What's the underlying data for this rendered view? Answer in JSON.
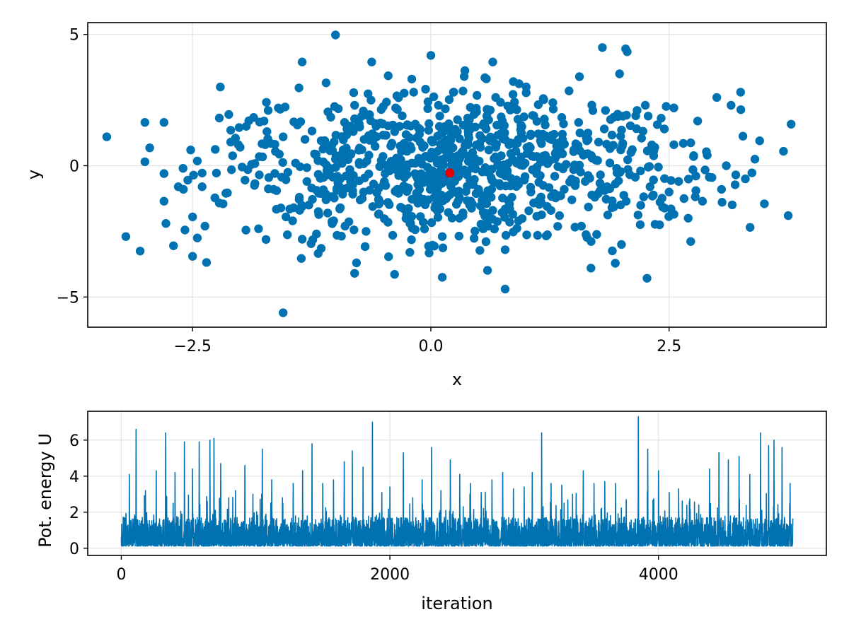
{
  "colors": {
    "series": "#0072b2",
    "highlight": "#e30000",
    "grid": "#e2e2e2",
    "axis": "#000000"
  },
  "chart_data": [
    {
      "type": "scatter",
      "title": "",
      "xlabel": "x",
      "ylabel": "y",
      "xlim": [
        -3.6,
        4.15
      ],
      "ylim": [
        -6.15,
        5.45
      ],
      "xticks": [
        -2.5,
        0.0,
        2.5
      ],
      "xtick_labels": [
        "−2.5",
        "0.0",
        "2.5"
      ],
      "yticks": [
        -5,
        0,
        5
      ],
      "ytick_labels": [
        "−5",
        "0",
        "5"
      ],
      "grid": true,
      "legend": "none",
      "highlight_point": {
        "x": 0.2,
        "y": -0.28
      },
      "series": [
        {
          "values": "approximately 1000 scattered points; cloud centered near (0.4, 0), x spanning about -3.4 to 3.8 and y spanning about -5.6 to 5.0"
        }
      ],
      "points": [
        [
          -3.4,
          1.1
        ],
        [
          -3.2,
          -2.7
        ],
        [
          -3.05,
          -3.25
        ],
        [
          -3.0,
          1.65
        ],
        [
          -3.0,
          0.15
        ],
        [
          -2.95,
          0.68
        ],
        [
          -2.8,
          1.65
        ],
        [
          -2.8,
          -0.3
        ],
        [
          -2.8,
          -1.35
        ],
        [
          -2.78,
          -2.2
        ],
        [
          -2.7,
          -3.05
        ],
        [
          -2.65,
          -0.8
        ],
        [
          -2.6,
          -0.1
        ],
        [
          -2.58,
          -2.45
        ],
        [
          -2.55,
          -0.55
        ],
        [
          -2.52,
          0.6
        ],
        [
          -2.5,
          -1.95
        ],
        [
          -2.5,
          -3.45
        ],
        [
          -2.45,
          -2.75
        ],
        [
          -2.45,
          0.18
        ],
        [
          -2.4,
          -0.28
        ],
        [
          -2.4,
          -0.8
        ],
        [
          -2.37,
          -2.3
        ],
        [
          -2.25,
          -0.28
        ],
        [
          -2.22,
          -1.42
        ],
        [
          -2.18,
          -1.45
        ],
        [
          -2.15,
          -1.05
        ],
        [
          -2.12,
          1.95
        ],
        [
          -2.1,
          1.35
        ],
        [
          -2.1,
          0.9
        ],
        [
          -2.08,
          0.38
        ],
        [
          -2.05,
          1.05
        ],
        [
          -2.02,
          0.8
        ],
        [
          -1.98,
          -0.05
        ],
        [
          -1.95,
          -0.55
        ],
        [
          -1.92,
          -0.15
        ],
        [
          -1.88,
          0.05
        ],
        [
          -1.85,
          -0.75
        ],
        [
          -1.8,
          -0.35
        ],
        [
          -1.75,
          1.7
        ],
        [
          -1.72,
          1.3
        ],
        [
          -1.7,
          -0.45
        ],
        [
          -1.68,
          0.85
        ],
        [
          -1.65,
          -0.9
        ],
        [
          -1.6,
          2.2
        ],
        [
          -1.58,
          2.15
        ],
        [
          -1.55,
          1.1
        ],
        [
          -1.52,
          -1.95
        ],
        [
          -1.5,
          -0.25
        ],
        [
          -1.48,
          -1.65
        ],
        [
          -1.45,
          -2.1
        ],
        [
          -1.42,
          0.1
        ],
        [
          -1.4,
          1.55
        ],
        [
          -1.38,
          -1.2
        ],
        [
          -1.35,
          -2.8
        ],
        [
          -1.32,
          1.0
        ],
        [
          -1.3,
          -0.6
        ],
        [
          -1.28,
          -1.5
        ],
        [
          -1.25,
          -0.85
        ],
        [
          -1.22,
          0.45
        ],
        [
          -1.2,
          -2.6
        ],
        [
          -1.18,
          -1.75
        ],
        [
          -1.15,
          -3.15
        ],
        [
          -1.12,
          0.95
        ],
        [
          -1.1,
          -1.3
        ],
        [
          -1.08,
          2.05
        ],
        [
          -1.05,
          1.85
        ],
        [
          -1.02,
          -2.1
        ],
        [
          -1.0,
          0.25
        ],
        [
          -0.98,
          -0.4
        ],
        [
          -0.95,
          -1.6
        ],
        [
          -0.92,
          0.6
        ],
        [
          -0.9,
          -2.3
        ],
        [
          -0.88,
          1.4
        ],
        [
          -0.85,
          -0.15
        ],
        [
          -0.82,
          -0.95
        ],
        [
          -0.8,
          2.3
        ],
        [
          -0.78,
          -3.7
        ],
        [
          -0.75,
          0.05
        ],
        [
          -0.72,
          -1.25
        ],
        [
          -0.7,
          1.0
        ],
        [
          -0.68,
          -2.5
        ],
        [
          -0.65,
          0.4
        ],
        [
          -0.62,
          3.95
        ],
        [
          -0.6,
          -0.7
        ],
        [
          -0.58,
          1.6
        ],
        [
          -0.55,
          -1.85
        ],
        [
          -0.52,
          0.2
        ],
        [
          -0.5,
          2.25
        ],
        [
          -0.48,
          -0.3
        ],
        [
          -0.45,
          -1.4
        ],
        [
          -0.42,
          0.75
        ],
        [
          -0.4,
          -2.65
        ],
        [
          -0.38,
          1.3
        ],
        [
          -0.35,
          -0.05
        ],
        [
          -0.32,
          -0.9
        ],
        [
          -0.3,
          1.9
        ],
        [
          -0.28,
          -1.65
        ],
        [
          -0.25,
          0.55
        ],
        [
          -0.22,
          -3.3
        ],
        [
          -0.2,
          0.1
        ],
        [
          -0.18,
          2.8
        ],
        [
          -0.15,
          -1.05
        ],
        [
          -0.12,
          1.2
        ],
        [
          -0.1,
          -0.45
        ],
        [
          -0.08,
          -2.15
        ],
        [
          -0.05,
          0.35
        ],
        [
          -0.02,
          1.6
        ],
        [
          0.0,
          -0.8
        ],
        [
          0.02,
          0.9
        ],
        [
          0.05,
          -1.5
        ],
        [
          0.08,
          2.3
        ],
        [
          0.1,
          -0.2
        ],
        [
          0.12,
          -2.7
        ],
        [
          0.15,
          0.6
        ],
        [
          0.18,
          1.35
        ],
        [
          0.2,
          -1.1
        ],
        [
          0.22,
          0.2
        ],
        [
          0.25,
          -0.6
        ],
        [
          0.28,
          1.75
        ],
        [
          0.3,
          -2.0
        ],
        [
          0.32,
          0.45
        ],
        [
          0.35,
          3.4
        ],
        [
          0.38,
          -0.35
        ],
        [
          0.4,
          1.05
        ],
        [
          0.42,
          -1.35
        ],
        [
          0.45,
          0.0
        ],
        [
          0.48,
          2.05
        ],
        [
          0.5,
          -0.9
        ],
        [
          0.52,
          0.7
        ],
        [
          0.55,
          -2.4
        ],
        [
          0.58,
          1.4
        ],
        [
          0.6,
          -0.15
        ],
        [
          0.62,
          0.95
        ],
        [
          0.65,
          -1.7
        ],
        [
          0.68,
          2.6
        ],
        [
          0.7,
          0.3
        ],
        [
          0.72,
          -0.7
        ],
        [
          0.75,
          1.7
        ],
        [
          0.78,
          -3.2
        ],
        [
          0.8,
          -0.3
        ],
        [
          0.82,
          0.8
        ],
        [
          0.85,
          -1.2
        ],
        [
          0.88,
          2.2
        ],
        [
          0.9,
          0.1
        ],
        [
          0.92,
          -2.1
        ],
        [
          0.95,
          1.25
        ],
        [
          0.98,
          -0.55
        ],
        [
          1.0,
          3.0
        ],
        [
          1.02,
          0.5
        ],
        [
          1.05,
          -1.0
        ],
        [
          1.08,
          1.9
        ],
        [
          1.1,
          -0.2
        ],
        [
          1.12,
          -2.65
        ],
        [
          1.15,
          0.95
        ],
        [
          1.18,
          -0.75
        ],
        [
          1.2,
          1.55
        ],
        [
          1.22,
          -1.55
        ],
        [
          1.25,
          0.2
        ],
        [
          1.28,
          2.4
        ],
        [
          1.3,
          -0.4
        ],
        [
          1.32,
          0.75
        ],
        [
          1.35,
          -1.9
        ],
        [
          1.38,
          1.2
        ],
        [
          1.4,
          -0.9
        ],
        [
          1.42,
          0.05
        ],
        [
          1.45,
          2.85
        ],
        [
          1.48,
          -1.3
        ],
        [
          1.5,
          0.6
        ],
        [
          1.52,
          -0.1
        ],
        [
          1.55,
          1.65
        ],
        [
          1.58,
          -2.3
        ],
        [
          1.6,
          0.4
        ],
        [
          1.62,
          -0.6
        ],
        [
          1.65,
          1.0
        ],
        [
          1.68,
          -3.9
        ],
        [
          1.7,
          2.1
        ],
        [
          1.72,
          -1.2
        ],
        [
          1.75,
          0.2
        ],
        [
          1.78,
          -0.35
        ],
        [
          1.8,
          4.5
        ],
        [
          1.82,
          1.4
        ],
        [
          1.85,
          -0.8
        ],
        [
          1.88,
          0.65
        ],
        [
          1.9,
          -1.6
        ],
        [
          1.92,
          1.85
        ],
        [
          1.95,
          -0.1
        ],
        [
          1.98,
          3.5
        ],
        [
          2.0,
          -3.0
        ],
        [
          2.05,
          -1.35
        ],
        [
          2.1,
          0.5
        ],
        [
          2.15,
          1.9
        ],
        [
          2.2,
          -0.2
        ],
        [
          2.25,
          2.3
        ],
        [
          2.3,
          -0.8
        ],
        [
          2.35,
          0.7
        ],
        [
          2.4,
          -2.25
        ],
        [
          2.45,
          1.4
        ],
        [
          2.5,
          -1.0
        ],
        [
          2.55,
          0.8
        ],
        [
          2.6,
          -0.6
        ],
        [
          2.65,
          0.85
        ],
        [
          2.7,
          -2.0
        ],
        [
          2.75,
          -0.15
        ],
        [
          2.8,
          1.7
        ],
        [
          2.85,
          -1.35
        ],
        [
          2.9,
          0.4
        ],
        [
          2.95,
          -0.45
        ],
        [
          3.0,
          2.6
        ],
        [
          3.05,
          -0.9
        ],
        [
          3.1,
          0.0
        ],
        [
          3.15,
          2.3
        ],
        [
          3.2,
          -0.35
        ],
        [
          3.25,
          2.8
        ],
        [
          3.3,
          -0.5
        ],
        [
          3.35,
          -2.35
        ],
        [
          3.4,
          0.25
        ],
        [
          3.45,
          0.95
        ],
        [
          3.5,
          -1.45
        ],
        [
          3.7,
          0.55
        ],
        [
          3.75,
          -1.9
        ],
        [
          3.78,
          1.58
        ],
        [
          -1.55,
          -5.6
        ],
        [
          -1.0,
          4.98
        ],
        [
          0.0,
          4.2
        ],
        [
          -1.35,
          3.95
        ],
        [
          0.78,
          -4.7
        ],
        [
          0.12,
          -4.25
        ],
        [
          -0.8,
          -4.1
        ],
        [
          0.65,
          3.95
        ],
        [
          -0.2,
          3.3
        ]
      ]
    },
    {
      "type": "line",
      "title": "",
      "xlabel": "iteration",
      "ylabel": "Pot. energy U",
      "xlim": [
        -250,
        5250
      ],
      "ylim": [
        -0.4,
        7.6
      ],
      "xticks": [
        0,
        2000,
        4000
      ],
      "xtick_labels": [
        "0",
        "2000",
        "4000"
      ],
      "yticks": [
        0,
        2,
        4,
        6
      ],
      "ytick_labels": [
        "0",
        "2",
        "4",
        "6"
      ],
      "grid": true,
      "legend": "none",
      "n_iterations": 5000,
      "peaks": [
        [
          60,
          4.1
        ],
        [
          110,
          6.6
        ],
        [
          180,
          3.2
        ],
        [
          260,
          4.3
        ],
        [
          330,
          6.4
        ],
        [
          400,
          4.2
        ],
        [
          470,
          5.9
        ],
        [
          530,
          4.4
        ],
        [
          580,
          5.9
        ],
        [
          660,
          6.0
        ],
        [
          690,
          6.1
        ],
        [
          740,
          4.7
        ],
        [
          800,
          2.8
        ],
        [
          850,
          3.2
        ],
        [
          920,
          4.6
        ],
        [
          980,
          3.0
        ],
        [
          1050,
          5.5
        ],
        [
          1120,
          3.8
        ],
        [
          1200,
          2.8
        ],
        [
          1280,
          3.6
        ],
        [
          1350,
          4.3
        ],
        [
          1420,
          5.8
        ],
        [
          1500,
          3.6
        ],
        [
          1580,
          3.8
        ],
        [
          1660,
          4.8
        ],
        [
          1720,
          5.4
        ],
        [
          1800,
          4.5
        ],
        [
          1870,
          7.0
        ],
        [
          1940,
          3.1
        ],
        [
          2000,
          3.4
        ],
        [
          2100,
          5.3
        ],
        [
          2170,
          2.8
        ],
        [
          2240,
          3.8
        ],
        [
          2310,
          5.6
        ],
        [
          2380,
          3.2
        ],
        [
          2450,
          4.9
        ],
        [
          2520,
          4.1
        ],
        [
          2600,
          3.6
        ],
        [
          2680,
          3.1
        ],
        [
          2760,
          3.8
        ],
        [
          2840,
          4.2
        ],
        [
          2920,
          3.3
        ],
        [
          3000,
          3.4
        ],
        [
          3060,
          4.2
        ],
        [
          3130,
          6.4
        ],
        [
          3200,
          3.6
        ],
        [
          3280,
          3.5
        ],
        [
          3360,
          3.0
        ],
        [
          3440,
          4.3
        ],
        [
          3520,
          3.6
        ],
        [
          3600,
          3.7
        ],
        [
          3680,
          3.6
        ],
        [
          3760,
          2.7
        ],
        [
          3850,
          7.3
        ],
        [
          3920,
          5.5
        ],
        [
          4000,
          4.3
        ],
        [
          4080,
          3.1
        ],
        [
          4150,
          3.3
        ],
        [
          4230,
          2.6
        ],
        [
          4300,
          2.4
        ],
        [
          4380,
          4.4
        ],
        [
          4450,
          5.3
        ],
        [
          4520,
          4.9
        ],
        [
          4600,
          5.1
        ],
        [
          4680,
          4.1
        ],
        [
          4760,
          6.4
        ],
        [
          4820,
          5.7
        ],
        [
          4860,
          6.0
        ],
        [
          4920,
          5.6
        ],
        [
          4980,
          3.6
        ]
      ]
    }
  ]
}
